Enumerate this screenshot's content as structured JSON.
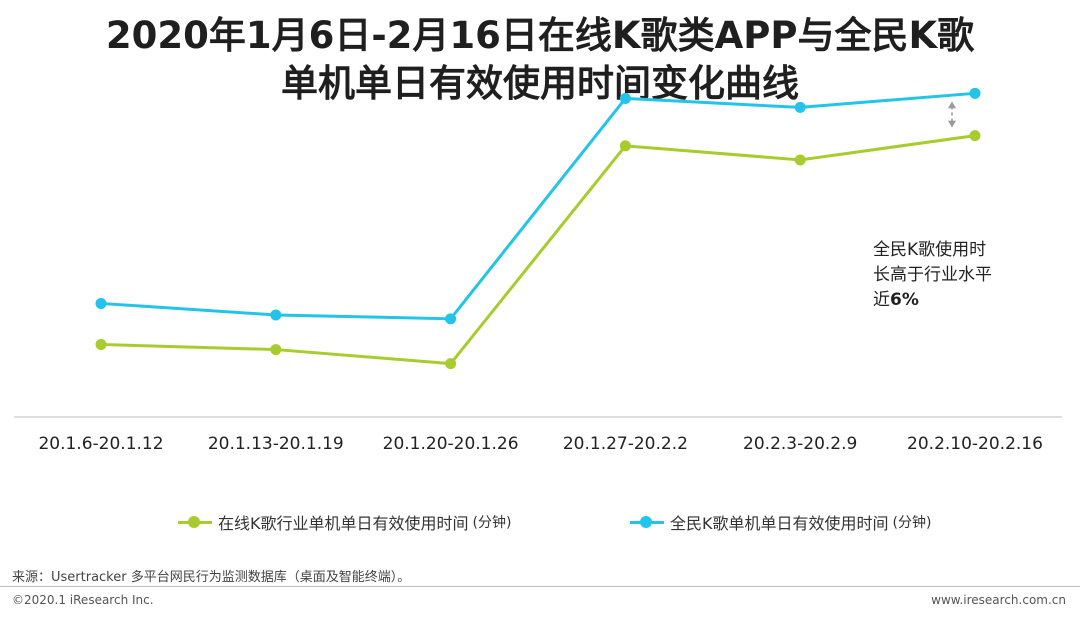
{
  "title": {
    "line1": "2020年1月6日-2月16日在线K歌类APP与全民K歌",
    "line2": "单机单日有效使用时间变化曲线"
  },
  "chart_data": {
    "type": "line",
    "title": "2020年1月6日-2月16日在线K歌类APP与全民K歌单机单日有效使用时间变化曲线",
    "categories": [
      "20.1.6-20.1.12",
      "20.1.13-20.1.19",
      "20.1.20-20.1.26",
      "20.1.27-20.2.2",
      "20.2.3-20.2.9",
      "20.2.10-20.2.16"
    ],
    "series": [
      {
        "name": "在线K歌行业单机单日有效使用时间",
        "unit": "(分钟)",
        "color": "#a8cc2e",
        "values": [
          39.8,
          39.4,
          38.3,
          55.3,
          54.2,
          56.1
        ]
      },
      {
        "name": "全民K歌单机单日有效使用时间",
        "unit": "(分钟)",
        "color": "#23c4ea",
        "values": [
          43.0,
          42.1,
          41.8,
          59.0,
          58.3,
          59.4
        ]
      }
    ],
    "ylim": [
      30,
      62
    ],
    "grid": false,
    "legend": "bottom",
    "annotation": {
      "category": "20.2.10-20.2.16",
      "lines": [
        "全民K歌使用时",
        "长高于行业水平"
      ],
      "line3_prefix": "近",
      "line3_bold": "6%"
    }
  },
  "footer": {
    "source": "来源：Usertracker 多平台网民行为监测数据库（桌面及智能终端）。",
    "copyright": "©2020.1 iResearch Inc.",
    "site": "www.iresearch.com.cn"
  }
}
